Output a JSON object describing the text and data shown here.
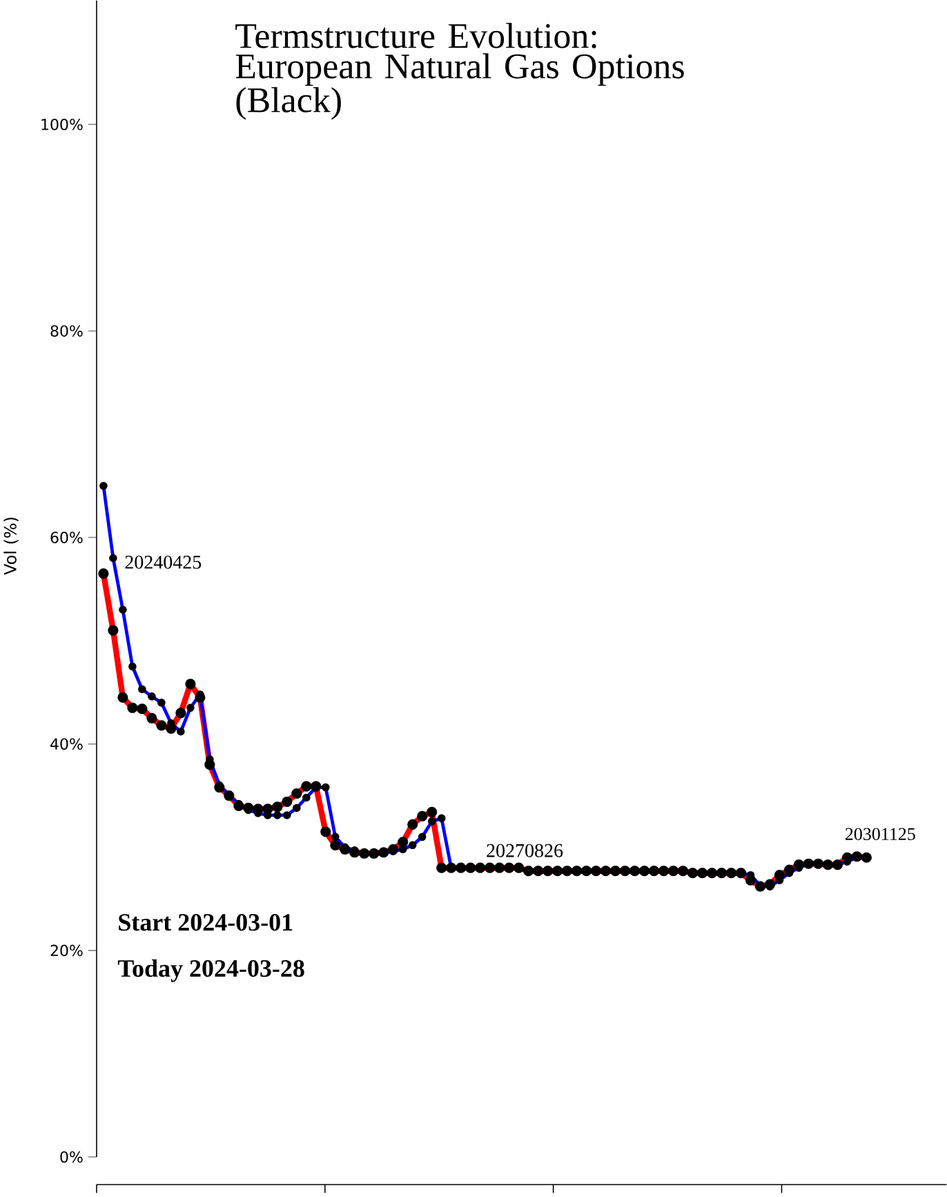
{
  "chart_data": {
    "type": "line",
    "title": "Termstructure Evolution: European Natural Gas Options (Black)",
    "ylabel": "Vol (%)",
    "categories": [
      null,
      null,
      null,
      null,
      null,
      null,
      null,
      null,
      null,
      null,
      null,
      null,
      null,
      null,
      null,
      null,
      null,
      null,
      null,
      null,
      null,
      null,
      null,
      null,
      null,
      null,
      null,
      null,
      null,
      null,
      null,
      null,
      null,
      null,
      null,
      null,
      null,
      null,
      null,
      null,
      null,
      null,
      null,
      null,
      null,
      null,
      null,
      null,
      null,
      null,
      null,
      null,
      null,
      null,
      null,
      null,
      null,
      null,
      null,
      null,
      null,
      null,
      null,
      null,
      null,
      null,
      null,
      null,
      null,
      null,
      null,
      null,
      null,
      null,
      null,
      null,
      null,
      null,
      null,
      null
    ],
    "series": [
      {
        "color": "#ff0000",
        "values": [
          56.5,
          51.0,
          44.5,
          43.5,
          43.4,
          42.5,
          41.8,
          41.5,
          43.0,
          45.8,
          44.5,
          38.0,
          35.8,
          35.0,
          34.0,
          33.8,
          33.7,
          33.7,
          33.9,
          34.4,
          35.2,
          35.9,
          35.9,
          31.5,
          30.2,
          29.8,
          29.5,
          29.4,
          29.4,
          29.5,
          29.8,
          30.5,
          32.2,
          33.0,
          33.4,
          28.0,
          28.0,
          28.0,
          28.0,
          28.0,
          28.0,
          28.0,
          28.0,
          28.0,
          27.7,
          27.7,
          27.7,
          27.7,
          27.7,
          27.7,
          27.7,
          27.7,
          27.7,
          27.7,
          27.7,
          27.7,
          27.7,
          27.7,
          27.7,
          27.7,
          27.7,
          27.5,
          27.5,
          27.5,
          27.5,
          27.5,
          27.5,
          26.8,
          26.2,
          26.4,
          27.3,
          27.8,
          28.3,
          28.4,
          28.4,
          28.3,
          28.3,
          29.0,
          29.1,
          29.0
        ]
      },
      {
        "color": "#0000ff",
        "values": [
          65.0,
          58.0,
          53.0,
          47.5,
          45.3,
          44.6,
          44.0,
          42.0,
          41.2,
          43.5,
          44.8,
          38.5,
          36.0,
          35.0,
          34.2,
          33.6,
          33.3,
          33.1,
          33.1,
          33.1,
          33.8,
          34.8,
          35.8,
          35.8,
          31.0,
          30.0,
          29.7,
          29.4,
          29.3,
          29.4,
          29.6,
          29.8,
          30.2,
          31.0,
          32.5,
          32.8,
          28.0,
          28.0,
          28.0,
          28.0,
          28.0,
          28.0,
          28.0,
          28.0,
          27.7,
          27.7,
          27.7,
          27.7,
          27.7,
          27.7,
          27.7,
          27.7,
          27.7,
          27.7,
          27.7,
          27.7,
          27.7,
          27.7,
          27.7,
          27.7,
          27.7,
          27.5,
          27.5,
          27.5,
          27.5,
          27.5,
          27.5,
          27.3,
          26.3,
          26.2,
          26.8,
          27.5,
          28.0,
          28.4,
          28.4,
          28.3,
          28.3,
          28.6,
          29.0,
          29.0
        ]
      }
    ],
    "ylim": [
      0,
      112
    ],
    "yticks": [
      {
        "value": 0,
        "label": "0%"
      },
      {
        "value": 20,
        "label": "20%"
      },
      {
        "value": 40,
        "label": "40%"
      },
      {
        "value": 60,
        "label": "60%"
      },
      {
        "value": 80,
        "label": "80%"
      },
      {
        "value": 100,
        "label": "100%"
      }
    ],
    "marker": "circle",
    "grid": false,
    "annotations": [
      "20240425",
      "**Start 2024-03-01**",
      "**Today 2024-03-28**",
      "20270826",
      "20301125"
    ]
  }
}
